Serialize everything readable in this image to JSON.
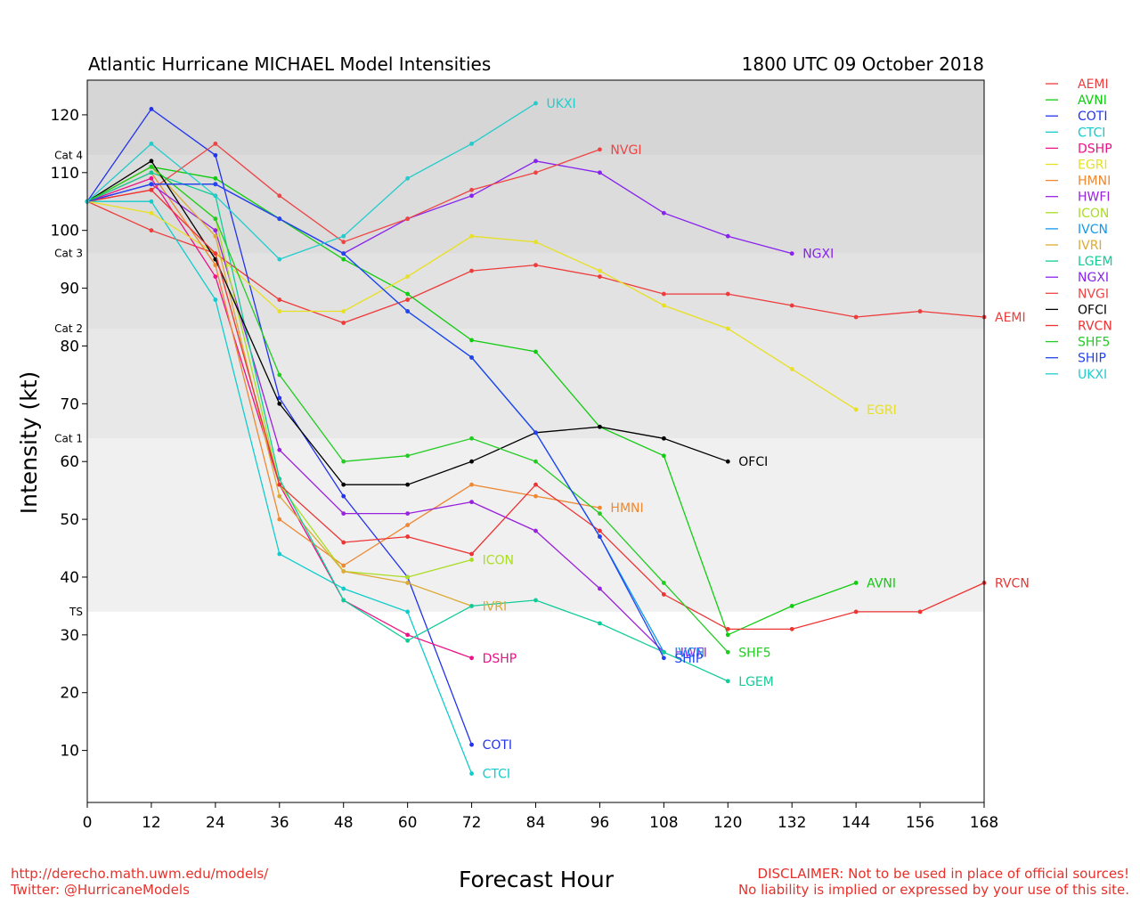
{
  "chart_data": {
    "type": "line",
    "title": "Atlantic Hurricane MICHAEL Model Intensities",
    "timestamp": "1800 UTC 09 October 2018",
    "xlabel": "Forecast Hour",
    "ylabel": "Intensity (kt)",
    "xlim": [
      0,
      168
    ],
    "ylim": [
      1,
      126
    ],
    "xticks": [
      0,
      12,
      24,
      36,
      48,
      60,
      72,
      84,
      96,
      108,
      120,
      132,
      144,
      156,
      168
    ],
    "yticks": [
      10,
      20,
      30,
      40,
      50,
      60,
      70,
      80,
      90,
      100,
      110,
      120
    ],
    "bands": [
      {
        "from": 1,
        "to": 34,
        "color": "#ffffff"
      },
      {
        "from": 34,
        "to": 64,
        "color": "#f0f0f0"
      },
      {
        "from": 64,
        "to": 83,
        "color": "#e8e8e8"
      },
      {
        "from": 83,
        "to": 96,
        "color": "#e2e2e2"
      },
      {
        "from": 96,
        "to": 113,
        "color": "#dcdcdc"
      },
      {
        "from": 113,
        "to": 126,
        "color": "#d6d6d6"
      }
    ],
    "category_labels": [
      {
        "label": "TS",
        "value": 34
      },
      {
        "label": "Cat 1",
        "value": 64
      },
      {
        "label": "Cat 2",
        "value": 83
      },
      {
        "label": "Cat 3",
        "value": 96
      },
      {
        "label": "Cat 4",
        "value": 113
      }
    ],
    "legend_position": "right",
    "series": [
      {
        "name": "AEMI",
        "color": "#ee3b3b",
        "x": [
          0,
          12,
          24,
          36,
          48,
          60,
          72,
          84,
          96,
          108,
          120,
          132,
          144,
          156,
          168
        ],
        "y": [
          105,
          100,
          96,
          88,
          84,
          88,
          93,
          94,
          92,
          89,
          89,
          87,
          85,
          86,
          85
        ]
      },
      {
        "name": "AVNI",
        "color": "#11cc11",
        "x": [
          0,
          12,
          24,
          36,
          48,
          60,
          72,
          84,
          96,
          108,
          120,
          132,
          144
        ],
        "y": [
          105,
          111,
          109,
          102,
          95,
          89,
          81,
          79,
          66,
          61,
          30,
          35,
          39
        ]
      },
      {
        "name": "COTI",
        "color": "#2233ee",
        "x": [
          0,
          12,
          24,
          36,
          48,
          60,
          72
        ],
        "y": [
          105,
          121,
          113,
          71,
          54,
          40,
          11
        ]
      },
      {
        "name": "CTCI",
        "color": "#11cccc",
        "x": [
          0,
          12,
          24,
          36,
          48,
          60,
          72
        ],
        "y": [
          105,
          105,
          88,
          44,
          38,
          34,
          6
        ]
      },
      {
        "name": "DSHP",
        "color": "#ee1188",
        "x": [
          0,
          12,
          24,
          36,
          48,
          60,
          72
        ],
        "y": [
          105,
          109,
          92,
          56,
          36,
          30,
          26
        ]
      },
      {
        "name": "EGRI",
        "color": "#e8e022",
        "x": [
          0,
          12,
          24,
          36,
          48,
          60,
          72,
          84,
          96,
          108,
          120,
          132,
          144
        ],
        "y": [
          105,
          103,
          96,
          86,
          86,
          92,
          99,
          98,
          93,
          87,
          83,
          76,
          69
        ]
      },
      {
        "name": "HMNI",
        "color": "#ee8833",
        "x": [
          0,
          12,
          24,
          36,
          48,
          60,
          72,
          84,
          96
        ],
        "y": [
          105,
          110,
          94,
          50,
          42,
          49,
          56,
          54,
          52
        ]
      },
      {
        "name": "HWFI",
        "color": "#9922dd",
        "x": [
          0,
          12,
          24,
          36,
          48,
          60,
          72,
          84,
          96,
          108
        ],
        "y": [
          105,
          108,
          100,
          62,
          51,
          51,
          53,
          48,
          38,
          27
        ]
      },
      {
        "name": "ICON",
        "color": "#aadd22",
        "x": [
          0,
          12,
          24,
          36,
          48,
          60,
          72
        ],
        "y": [
          105,
          111,
          102,
          56,
          41,
          40,
          43
        ]
      },
      {
        "name": "IVCN",
        "color": "#1199ee",
        "x": [
          0,
          12,
          24,
          36,
          48,
          60,
          72,
          84,
          96,
          108
        ],
        "y": [
          105,
          108,
          108,
          102,
          96,
          86,
          78,
          65,
          47,
          27
        ]
      },
      {
        "name": "IVRI",
        "color": "#ddaa33",
        "x": [
          0,
          12,
          24,
          36,
          48,
          60,
          72
        ],
        "y": [
          105,
          111,
          99,
          54,
          41,
          39,
          35
        ]
      },
      {
        "name": "LGEM",
        "color": "#11cc99",
        "x": [
          0,
          12,
          24,
          36,
          48,
          60,
          72,
          84,
          96,
          108,
          120
        ],
        "y": [
          105,
          110,
          106,
          57,
          36,
          29,
          35,
          36,
          32,
          27,
          22
        ]
      },
      {
        "name": "NGXI",
        "color": "#8822ee",
        "x": [
          0,
          12,
          24,
          36,
          48,
          60,
          72,
          84,
          96,
          108,
          120,
          132
        ],
        "y": [
          105,
          108,
          108,
          102,
          96,
          102,
          106,
          112,
          110,
          103,
          99,
          96
        ]
      },
      {
        "name": "NVGI",
        "color": "#ee4444",
        "x": [
          0,
          12,
          24,
          36,
          48,
          60,
          72,
          84,
          96
        ],
        "y": [
          105,
          107,
          115,
          106,
          98,
          102,
          107,
          110,
          114
        ]
      },
      {
        "name": "OFCI",
        "color": "#000000",
        "x": [
          0,
          12,
          24,
          36,
          48,
          60,
          72,
          84,
          96,
          108,
          120
        ],
        "y": [
          105,
          112,
          95,
          70,
          56,
          56,
          60,
          65,
          66,
          64,
          60
        ]
      },
      {
        "name": "RVCN",
        "color": "#ee3333",
        "x": [
          0,
          12,
          24,
          36,
          48,
          60,
          72,
          84,
          96,
          108,
          120,
          132,
          144,
          156,
          168
        ],
        "y": [
          105,
          107,
          96,
          56,
          46,
          47,
          44,
          56,
          48,
          37,
          31,
          31,
          34,
          34,
          39
        ]
      },
      {
        "name": "SHF5",
        "color": "#22cc22",
        "x": [
          0,
          12,
          24,
          36,
          48,
          60,
          72,
          84,
          96,
          108,
          120
        ],
        "y": [
          105,
          111,
          102,
          75,
          60,
          61,
          64,
          60,
          51,
          39,
          27
        ]
      },
      {
        "name": "SHIP",
        "color": "#2244ee",
        "x": [
          0,
          12,
          24,
          36,
          48,
          60,
          72,
          84,
          96,
          108
        ],
        "y": [
          105,
          108,
          108,
          102,
          96,
          86,
          78,
          65,
          47,
          26
        ]
      },
      {
        "name": "UKXI",
        "color": "#22cccc",
        "x": [
          0,
          12,
          24,
          36,
          48,
          60,
          72,
          84
        ],
        "y": [
          105,
          115,
          106,
          95,
          99,
          109,
          115,
          122
        ]
      }
    ]
  },
  "footer": {
    "url": "http://derecho.math.uwm.edu/models/",
    "twitter": "Twitter: @HurricaneModels",
    "disclaimer1": "DISCLAIMER: Not to be used in place of official sources!",
    "disclaimer2": "No liability is implied or expressed by your use of this site."
  }
}
